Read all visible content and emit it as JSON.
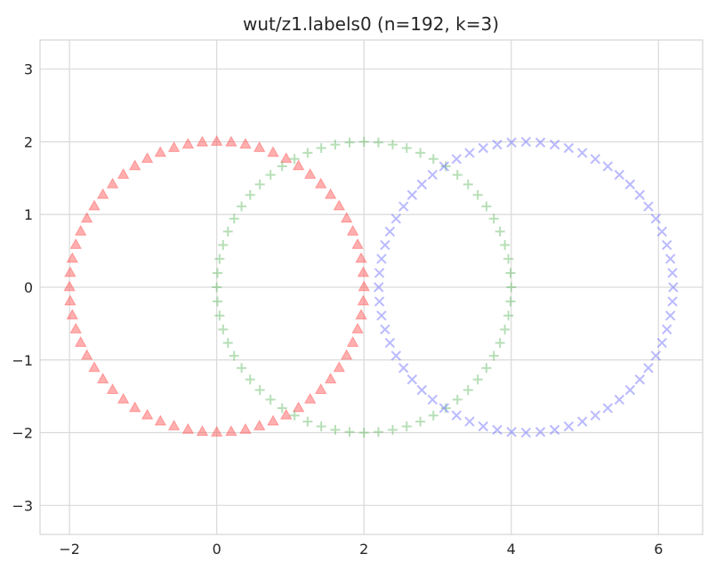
{
  "chart_data": {
    "type": "scatter",
    "title": "wut/z1.labels0 (n=192, k=3)",
    "xlabel": "",
    "ylabel": "",
    "xlim": [
      -2.4,
      6.6
    ],
    "ylim": [
      -3.4,
      3.4
    ],
    "xticks": [
      -2,
      0,
      2,
      4,
      6
    ],
    "yticks": [
      -3,
      -2,
      -1,
      0,
      1,
      2,
      3
    ],
    "xtick_labels": [
      "−2",
      "0",
      "2",
      "4",
      "6"
    ],
    "ytick_labels": [
      "−3",
      "−2",
      "−1",
      "0",
      "1",
      "2",
      "3"
    ],
    "grid": true,
    "series": [
      {
        "marker": "triangle",
        "color": "#ff4d4d",
        "alpha": 0.45,
        "shape": "circle",
        "center": [
          0,
          0
        ],
        "radius_x": 2.0,
        "radius_y": 2.0,
        "count": 64
      },
      {
        "marker": "plus",
        "color": "#5fb85f",
        "alpha": 0.45,
        "shape": "ellipse",
        "center": [
          2,
          0
        ],
        "radius_x": 2.0,
        "radius_y": 2.0,
        "count": 64
      },
      {
        "marker": "x",
        "color": "#6666ff",
        "alpha": 0.45,
        "shape": "circle",
        "center": [
          4.2,
          0
        ],
        "radius_x": 2.0,
        "radius_y": 2.0,
        "count": 64
      }
    ]
  }
}
